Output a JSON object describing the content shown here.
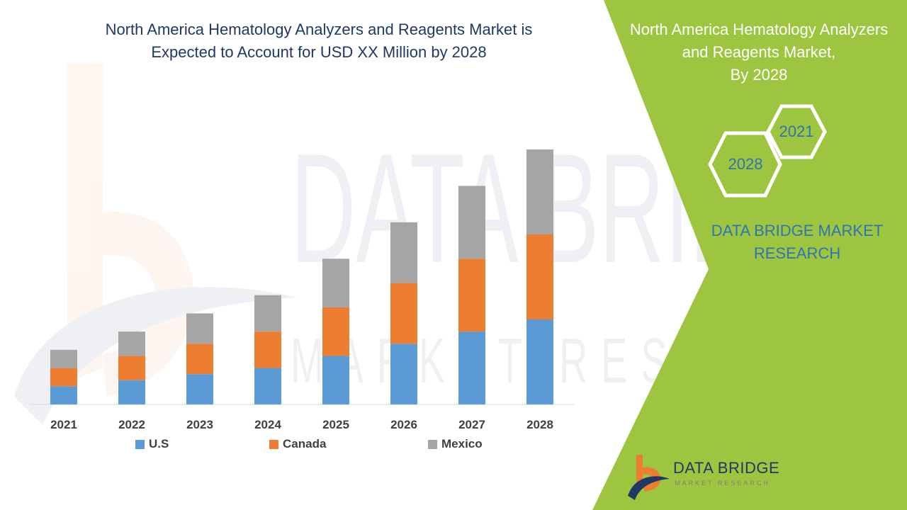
{
  "title": {
    "line1": "North America Hematology Analyzers and Reagents Market is",
    "line2": "Expected to Account for USD XX Million by 2028"
  },
  "side_panel": {
    "heading_line1": "North America Hematology Analyzers",
    "heading_line2": "and Reagents Market,",
    "heading_line3": "By 2028",
    "hex_front": "2028",
    "hex_back": "2021",
    "brand_line1": "DATA BRIDGE MARKET",
    "brand_line2": "RESEARCH",
    "panel_color": "#9dc53f"
  },
  "logo": {
    "name": "DATA BRIDGE",
    "tagline": "MARKET RESEARCH"
  },
  "chart_data": {
    "type": "bar",
    "stacked": true,
    "categories": [
      "2021",
      "2022",
      "2023",
      "2024",
      "2025",
      "2026",
      "2027",
      "2028"
    ],
    "series": [
      {
        "name": "U.S",
        "color": "#5b9bd5",
        "values": [
          1.5,
          2.0,
          2.5,
          3.0,
          4.0,
          5.0,
          6.0,
          7.0
        ]
      },
      {
        "name": "Canada",
        "color": "#ed7d31",
        "values": [
          1.5,
          2.0,
          2.5,
          3.0,
          4.0,
          5.0,
          6.0,
          7.0
        ]
      },
      {
        "name": "Mexico",
        "color": "#a5a5a5",
        "values": [
          1.5,
          2.0,
          2.5,
          3.0,
          4.0,
          5.0,
          6.0,
          7.0
        ]
      }
    ],
    "ylim": [
      0,
      21
    ],
    "grid": false,
    "legend_position": "bottom"
  }
}
